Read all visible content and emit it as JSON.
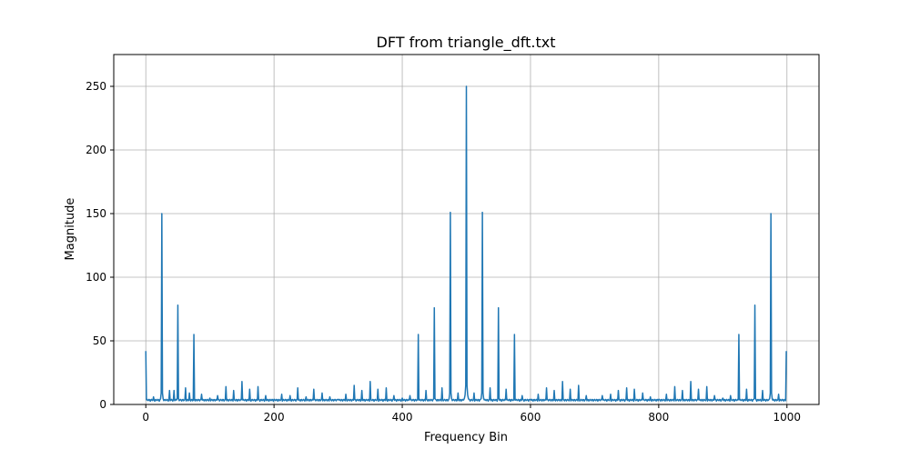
{
  "chart_data": {
    "type": "line",
    "title": "DFT from triangle_dft.txt",
    "xlabel": "Frequency Bin",
    "ylabel": "Magnitude",
    "xlim": [
      -50,
      1050
    ],
    "ylim": [
      0,
      275
    ],
    "xticks": [
      0,
      200,
      400,
      600,
      800,
      1000
    ],
    "yticks": [
      0,
      50,
      100,
      150,
      200,
      250
    ],
    "grid": true,
    "baseline": 2.5,
    "peaks": [
      {
        "x": 0,
        "y": 42
      },
      {
        "x": 25,
        "y": 150
      },
      {
        "x": 50,
        "y": 78
      },
      {
        "x": 75,
        "y": 55
      },
      {
        "x": 425,
        "y": 55
      },
      {
        "x": 450,
        "y": 76
      },
      {
        "x": 475,
        "y": 151
      },
      {
        "x": 500,
        "y": 250
      },
      {
        "x": 525,
        "y": 151
      },
      {
        "x": 550,
        "y": 76
      },
      {
        "x": 575,
        "y": 55
      },
      {
        "x": 925,
        "y": 55
      },
      {
        "x": 950,
        "y": 78
      },
      {
        "x": 975,
        "y": 150
      },
      {
        "x": 999,
        "y": 42
      }
    ],
    "minor_peaks": [
      {
        "x": 12,
        "y": 6
      },
      {
        "x": 37,
        "y": 11
      },
      {
        "x": 44,
        "y": 11
      },
      {
        "x": 62,
        "y": 13
      },
      {
        "x": 68,
        "y": 9
      },
      {
        "x": 87,
        "y": 8
      },
      {
        "x": 100,
        "y": 5
      },
      {
        "x": 112,
        "y": 7
      },
      {
        "x": 125,
        "y": 14
      },
      {
        "x": 137,
        "y": 11
      },
      {
        "x": 150,
        "y": 18
      },
      {
        "x": 162,
        "y": 12
      },
      {
        "x": 175,
        "y": 14
      },
      {
        "x": 187,
        "y": 7
      },
      {
        "x": 200,
        "y": 4
      },
      {
        "x": 212,
        "y": 8
      },
      {
        "x": 225,
        "y": 7
      },
      {
        "x": 237,
        "y": 13
      },
      {
        "x": 250,
        "y": 6
      },
      {
        "x": 262,
        "y": 12
      },
      {
        "x": 275,
        "y": 9
      },
      {
        "x": 287,
        "y": 6
      },
      {
        "x": 300,
        "y": 4
      },
      {
        "x": 312,
        "y": 8
      },
      {
        "x": 325,
        "y": 15
      },
      {
        "x": 337,
        "y": 11
      },
      {
        "x": 350,
        "y": 18
      },
      {
        "x": 362,
        "y": 12
      },
      {
        "x": 375,
        "y": 13
      },
      {
        "x": 387,
        "y": 7
      },
      {
        "x": 400,
        "y": 5
      },
      {
        "x": 412,
        "y": 7
      },
      {
        "x": 437,
        "y": 11
      },
      {
        "x": 462,
        "y": 13
      },
      {
        "x": 487,
        "y": 9
      },
      {
        "x": 512,
        "y": 9
      },
      {
        "x": 537,
        "y": 13
      },
      {
        "x": 562,
        "y": 12
      },
      {
        "x": 587,
        "y": 7
      },
      {
        "x": 600,
        "y": 4
      },
      {
        "x": 612,
        "y": 8
      },
      {
        "x": 625,
        "y": 13
      },
      {
        "x": 637,
        "y": 11
      },
      {
        "x": 650,
        "y": 18
      },
      {
        "x": 662,
        "y": 12
      },
      {
        "x": 675,
        "y": 15
      },
      {
        "x": 687,
        "y": 7
      },
      {
        "x": 700,
        "y": 4
      },
      {
        "x": 712,
        "y": 7
      },
      {
        "x": 725,
        "y": 8
      },
      {
        "x": 737,
        "y": 11
      },
      {
        "x": 750,
        "y": 13
      },
      {
        "x": 762,
        "y": 12
      },
      {
        "x": 775,
        "y": 9
      },
      {
        "x": 787,
        "y": 6
      },
      {
        "x": 800,
        "y": 4
      },
      {
        "x": 812,
        "y": 8
      },
      {
        "x": 825,
        "y": 14
      },
      {
        "x": 837,
        "y": 11
      },
      {
        "x": 850,
        "y": 18
      },
      {
        "x": 862,
        "y": 12
      },
      {
        "x": 875,
        "y": 14
      },
      {
        "x": 887,
        "y": 7
      },
      {
        "x": 900,
        "y": 5
      },
      {
        "x": 912,
        "y": 7
      },
      {
        "x": 937,
        "y": 12
      },
      {
        "x": 962,
        "y": 11
      },
      {
        "x": 987,
        "y": 8
      }
    ],
    "colors": {
      "line": "#1f77b4",
      "grid": "#b0b0b0",
      "axes": "#000000"
    }
  }
}
